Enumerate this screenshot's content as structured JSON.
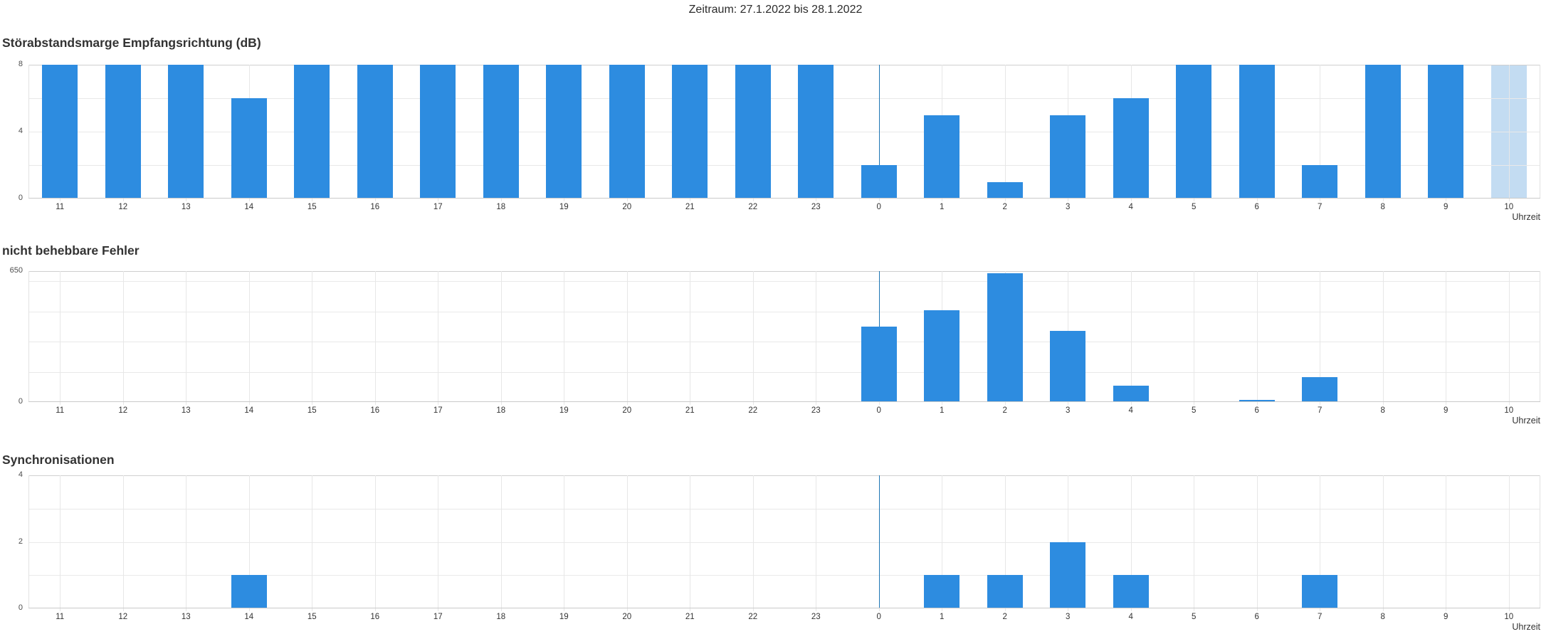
{
  "header": {
    "title": "Zeitraum: 27.1.2022 bis 28.1.2022"
  },
  "x_axis": {
    "axis_label": "Uhrzeit",
    "labels": [
      "11",
      "12",
      "13",
      "14",
      "15",
      "16",
      "17",
      "18",
      "19",
      "20",
      "21",
      "22",
      "23",
      "0",
      "1",
      "2",
      "3",
      "4",
      "5",
      "6",
      "7",
      "8",
      "9",
      "10"
    ],
    "midnight_index": 13,
    "current_hour": "10"
  },
  "chart_data": [
    {
      "type": "bar",
      "title": "Störabstandsmarge Empfangsrichtung (dB)",
      "xlabel": "Uhrzeit",
      "ylabel": "",
      "categories": [
        "11",
        "12",
        "13",
        "14",
        "15",
        "16",
        "17",
        "18",
        "19",
        "20",
        "21",
        "22",
        "23",
        "0",
        "1",
        "2",
        "3",
        "4",
        "5",
        "6",
        "7",
        "8",
        "9",
        "10"
      ],
      "values": [
        8,
        8,
        8,
        6,
        8,
        8,
        8,
        8,
        8,
        8,
        8,
        8,
        8,
        2,
        5,
        1,
        5,
        6,
        8,
        8,
        2,
        8,
        8,
        8
      ],
      "ylim": [
        0,
        8
      ],
      "grid_step": 2,
      "y_ticks": [
        {
          "value": 0,
          "label": "0"
        },
        {
          "value": 4,
          "label": "4"
        },
        {
          "value": 8,
          "label": "8"
        }
      ],
      "grid": true,
      "legend_position": "none",
      "partial_last_bar": true,
      "annotations": {
        "midnight_line_at": "0",
        "highlighted_hour": "10"
      }
    },
    {
      "type": "bar",
      "title": "nicht behebbare Fehler",
      "xlabel": "Uhrzeit",
      "ylabel": "",
      "categories": [
        "11",
        "12",
        "13",
        "14",
        "15",
        "16",
        "17",
        "18",
        "19",
        "20",
        "21",
        "22",
        "23",
        "0",
        "1",
        "2",
        "3",
        "4",
        "5",
        "6",
        "7",
        "8",
        "9",
        "10"
      ],
      "values": [
        0,
        0,
        0,
        0,
        0,
        0,
        0,
        0,
        0,
        0,
        0,
        0,
        0,
        375,
        455,
        640,
        355,
        80,
        0,
        10,
        125,
        0,
        0,
        0
      ],
      "ylim": [
        0,
        650
      ],
      "grid_step": 150,
      "y_ticks": [
        {
          "value": 0,
          "label": "0"
        },
        {
          "value": 650,
          "label": "650"
        }
      ],
      "grid": true,
      "legend_position": "none",
      "partial_last_bar": false,
      "annotations": {
        "midnight_line_at": "0"
      }
    },
    {
      "type": "bar",
      "title": "Synchronisationen",
      "xlabel": "Uhrzeit",
      "ylabel": "",
      "categories": [
        "11",
        "12",
        "13",
        "14",
        "15",
        "16",
        "17",
        "18",
        "19",
        "20",
        "21",
        "22",
        "23",
        "0",
        "1",
        "2",
        "3",
        "4",
        "5",
        "6",
        "7",
        "8",
        "9",
        "10"
      ],
      "values": [
        0,
        0,
        0,
        1,
        0,
        0,
        0,
        0,
        0,
        0,
        0,
        0,
        0,
        0,
        1,
        1,
        2,
        1,
        0,
        0,
        1,
        0,
        0,
        0
      ],
      "ylim": [
        0,
        4
      ],
      "grid_step": 1,
      "y_ticks": [
        {
          "value": 0,
          "label": "0"
        },
        {
          "value": 2,
          "label": "2"
        },
        {
          "value": 4,
          "label": "4"
        }
      ],
      "grid": true,
      "legend_position": "none",
      "partial_last_bar": false,
      "annotations": {
        "midnight_line_at": "0"
      }
    }
  ],
  "colors": {
    "bar": "#2d8ce0",
    "bar_partial": "#c3dcf2",
    "midnight_line": "#1d76b5",
    "gridline": "#e9e9e9",
    "axis_line": "#cfcfcf",
    "text": "#333333"
  }
}
